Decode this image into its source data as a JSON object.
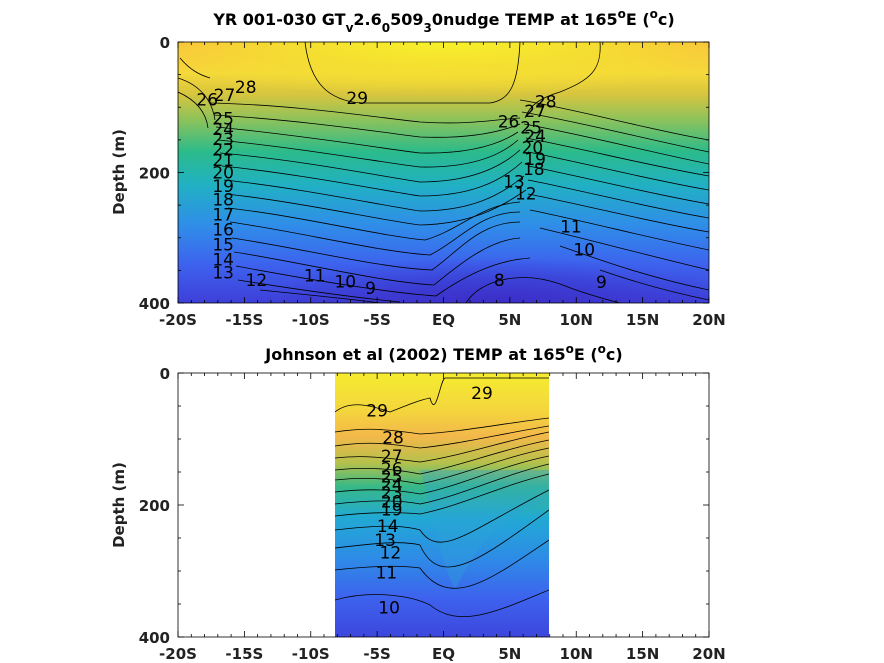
{
  "chart_data": [
    {
      "type": "heatmap",
      "subtype": "filled-contour",
      "title_parts": [
        "YR 001-030 GT",
        "v",
        "2.6",
        "0",
        "509",
        "3",
        "0nudge TEMP at 165",
        "o",
        "E (",
        "o",
        "c)"
      ],
      "ylabel": "Depth (m)",
      "xlim": [
        -20,
        20
      ],
      "ylim": [
        0,
        400
      ],
      "xticks": [
        "-20S",
        "-15S",
        "-10S",
        "-5S",
        "EQ",
        "5N",
        "10N",
        "15N",
        "20N"
      ],
      "yticks": [
        "0",
        "200",
        "400"
      ],
      "contour_labels": [
        {
          "text": "28",
          "lat": -14.9,
          "depth": 69
        },
        {
          "text": "27",
          "lat": -16.5,
          "depth": 81
        },
        {
          "text": "26",
          "lat": -17.8,
          "depth": 88
        },
        {
          "text": "29",
          "lat": -6.5,
          "depth": 86
        },
        {
          "text": "25",
          "lat": -16.6,
          "depth": 117
        },
        {
          "text": "24",
          "lat": -16.6,
          "depth": 133
        },
        {
          "text": "23",
          "lat": -16.6,
          "depth": 149
        },
        {
          "text": "22",
          "lat": -16.6,
          "depth": 165
        },
        {
          "text": "21",
          "lat": -16.6,
          "depth": 181
        },
        {
          "text": "20",
          "lat": -16.6,
          "depth": 200
        },
        {
          "text": "19",
          "lat": -16.6,
          "depth": 221
        },
        {
          "text": "18",
          "lat": -16.6,
          "depth": 241
        },
        {
          "text": "17",
          "lat": -16.6,
          "depth": 264
        },
        {
          "text": "16",
          "lat": -16.6,
          "depth": 287
        },
        {
          "text": "15",
          "lat": -16.6,
          "depth": 310
        },
        {
          "text": "14",
          "lat": -16.6,
          "depth": 333
        },
        {
          "text": "13",
          "lat": -16.6,
          "depth": 353
        },
        {
          "text": "12",
          "lat": -14.1,
          "depth": 365
        },
        {
          "text": "11",
          "lat": -9.7,
          "depth": 358
        },
        {
          "text": "10",
          "lat": -7.4,
          "depth": 367
        },
        {
          "text": "9",
          "lat": -5.5,
          "depth": 377
        },
        {
          "text": "8",
          "lat": 4.2,
          "depth": 365
        },
        {
          "text": "9",
          "lat": 11.9,
          "depth": 368
        },
        {
          "text": "10",
          "lat": 10.6,
          "depth": 318
        },
        {
          "text": "11",
          "lat": 9.6,
          "depth": 283
        },
        {
          "text": "28",
          "lat": 7.7,
          "depth": 91
        },
        {
          "text": "27",
          "lat": 6.9,
          "depth": 106
        },
        {
          "text": "26",
          "lat": 4.9,
          "depth": 122
        },
        {
          "text": "25",
          "lat": 6.6,
          "depth": 131
        },
        {
          "text": "24",
          "lat": 6.9,
          "depth": 144
        },
        {
          "text": "20",
          "lat": 6.7,
          "depth": 162
        },
        {
          "text": "19",
          "lat": 6.9,
          "depth": 179
        },
        {
          "text": "18",
          "lat": 6.8,
          "depth": 195
        },
        {
          "text": "13",
          "lat": 5.3,
          "depth": 214
        },
        {
          "text": "12",
          "lat": 6.2,
          "depth": 232
        }
      ]
    },
    {
      "type": "heatmap",
      "subtype": "filled-contour",
      "title_parts": [
        "Johnson et al (2002) TEMP at 165",
        "o",
        "E (",
        "o",
        "c)"
      ],
      "ylabel": "Depth (m)",
      "xlim": [
        -20,
        20
      ],
      "ylim": [
        0,
        400
      ],
      "data_extent_lat": [
        -8,
        8
      ],
      "xticks": [
        "-20S",
        "-15S",
        "-10S",
        "-5S",
        "EQ",
        "5N",
        "10N",
        "15N",
        "20N"
      ],
      "yticks": [
        "0",
        "200",
        "400"
      ],
      "contour_labels": [
        {
          "text": "29",
          "lat": -5.0,
          "depth": 57
        },
        {
          "text": "29",
          "lat": 2.9,
          "depth": 30
        },
        {
          "text": "28",
          "lat": -3.8,
          "depth": 98
        },
        {
          "text": "27",
          "lat": -3.9,
          "depth": 126
        },
        {
          "text": "26",
          "lat": -3.9,
          "depth": 145
        },
        {
          "text": "25",
          "lat": -3.9,
          "depth": 157
        },
        {
          "text": "24",
          "lat": -3.9,
          "depth": 169
        },
        {
          "text": "23",
          "lat": -3.9,
          "depth": 181
        },
        {
          "text": "20",
          "lat": -3.9,
          "depth": 195
        },
        {
          "text": "19",
          "lat": -3.9,
          "depth": 207
        },
        {
          "text": "14",
          "lat": -4.2,
          "depth": 232
        },
        {
          "text": "13",
          "lat": -4.4,
          "depth": 253
        },
        {
          "text": "12",
          "lat": -4.0,
          "depth": 272
        },
        {
          "text": "11",
          "lat": -4.3,
          "depth": 302
        },
        {
          "text": "10",
          "lat": -4.1,
          "depth": 355
        }
      ]
    }
  ]
}
